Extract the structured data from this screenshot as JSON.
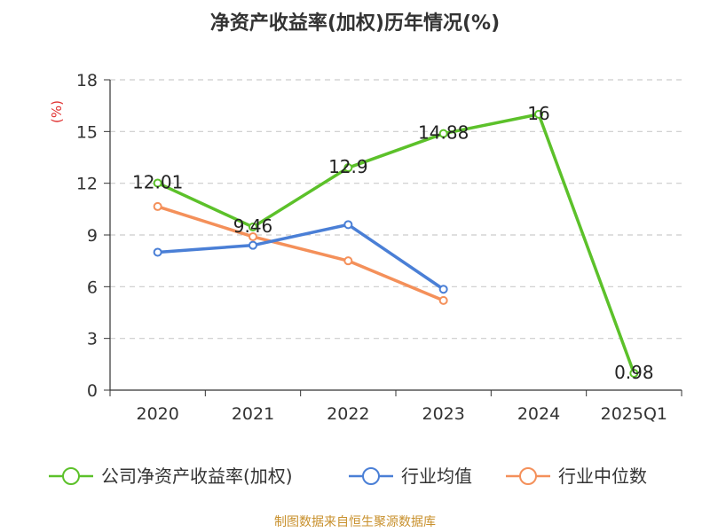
{
  "title": "净资产收益率(加权)历年情况(%)",
  "source": "制图数据来自恒生聚源数据库",
  "colors": {
    "company": "#5cc12a",
    "industry_avg": "#4a7fd6",
    "industry_median": "#f4905a",
    "unit": "#e03030",
    "source": "#c8902c",
    "grid": "#cccccc",
    "axis": "#333333"
  },
  "chart_data": {
    "type": "line",
    "title": "净资产收益率(加权)历年情况(%)",
    "ylabel": "(%)",
    "xlabel": "",
    "ylim": [
      0,
      18
    ],
    "yticks": [
      0,
      3,
      6,
      9,
      12,
      15,
      18
    ],
    "categories": [
      "2020",
      "2021",
      "2022",
      "2023",
      "2024",
      "2025Q1"
    ],
    "grid": true,
    "legend_position": "bottom",
    "series": [
      {
        "key": "company",
        "name": "公司净资产收益率(加权)",
        "values": [
          12.01,
          9.46,
          12.9,
          14.88,
          16,
          0.98
        ],
        "labels": [
          "12.01",
          "9.46",
          "12.9",
          "14.88",
          "16",
          "0.98"
        ]
      },
      {
        "key": "industry_avg",
        "name": "行业均值",
        "values": [
          8.0,
          8.4,
          9.6,
          5.85,
          null,
          null
        ]
      },
      {
        "key": "industry_median",
        "name": "行业中位数",
        "values": [
          10.65,
          8.9,
          7.5,
          5.2,
          null,
          null
        ]
      }
    ]
  }
}
